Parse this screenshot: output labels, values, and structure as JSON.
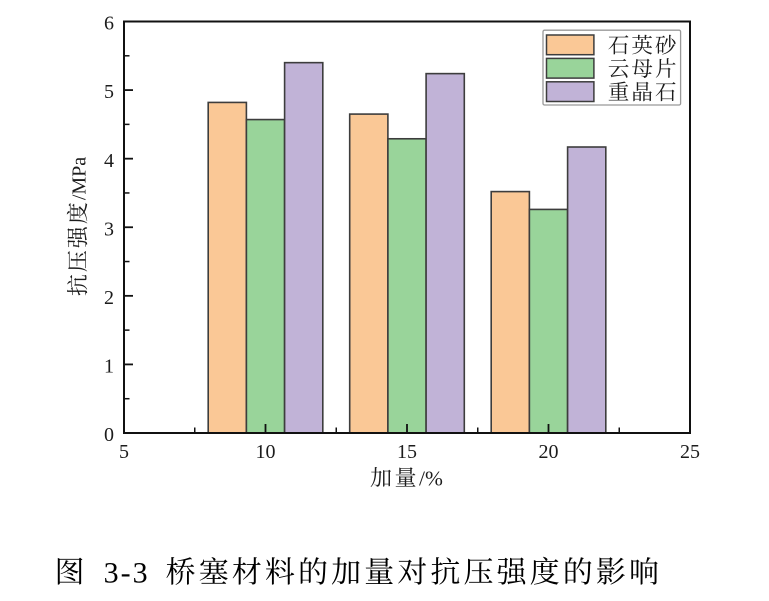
{
  "figure": {
    "caption": "图 3-3 桥塞材料的加量对抗压强度的影响"
  },
  "chart_data": {
    "type": "bar",
    "categories": [
      10,
      15,
      20
    ],
    "series": [
      {
        "name": "石英砂",
        "color": "#FAC896",
        "values": [
          4.82,
          4.65,
          3.52
        ]
      },
      {
        "name": "云母片",
        "color": "#99D49A",
        "values": [
          4.57,
          4.29,
          3.26
        ]
      },
      {
        "name": "重晶石",
        "color": "#C1B3D7",
        "values": [
          5.4,
          5.24,
          4.17
        ]
      }
    ],
    "xlabel": "加量/%",
    "ylabel": "抗压强度/MPa",
    "xlim": [
      5,
      25
    ],
    "ylim": [
      0,
      6
    ],
    "x_major_ticks": [
      5,
      10,
      15,
      20,
      25
    ],
    "y_major_ticks": [
      0,
      1,
      2,
      3,
      4,
      5,
      6
    ],
    "x_minor_step": 2.5,
    "y_minor_step": 0.5,
    "grid": false,
    "legend_position": "upper right",
    "bar_edge_color": "#3d3d3d",
    "axis_color": "#111111",
    "text_color": "#1c1c1c"
  }
}
